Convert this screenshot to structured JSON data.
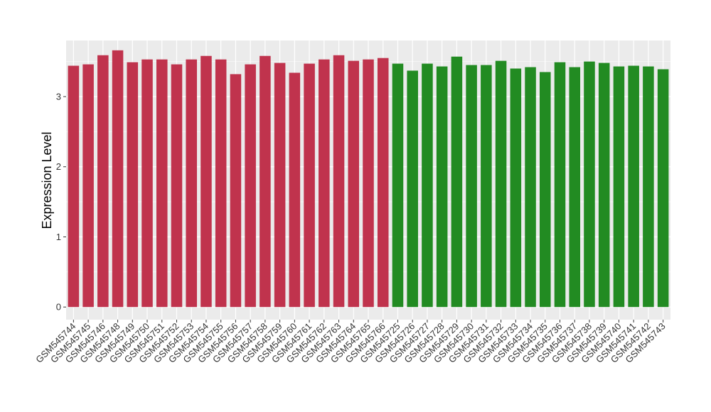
{
  "chart_data": {
    "type": "bar",
    "title": "",
    "xlabel": "",
    "ylabel": "Expression Level",
    "ylim": [
      -0.18,
      3.8
    ],
    "yticks": [
      0,
      1,
      2,
      3
    ],
    "grid": true,
    "legend": "none",
    "categories": [
      "GSM545744",
      "GSM545745",
      "GSM545746",
      "GSM545748",
      "GSM545749",
      "GSM545750",
      "GSM545751",
      "GSM545752",
      "GSM545753",
      "GSM545754",
      "GSM545755",
      "GSM545756",
      "GSM545757",
      "GSM545758",
      "GSM545759",
      "GSM545760",
      "GSM545761",
      "GSM545762",
      "GSM545763",
      "GSM545764",
      "GSM545765",
      "GSM545766",
      "GSM545725",
      "GSM545726",
      "GSM545727",
      "GSM545728",
      "GSM545729",
      "GSM545730",
      "GSM545731",
      "GSM545732",
      "GSM545733",
      "GSM545734",
      "GSM545735",
      "GSM545736",
      "GSM545737",
      "GSM545738",
      "GSM545739",
      "GSM545740",
      "GSM545741",
      "GSM545742",
      "GSM545743"
    ],
    "values": [
      3.44,
      3.46,
      3.59,
      3.66,
      3.49,
      3.53,
      3.53,
      3.46,
      3.53,
      3.58,
      3.53,
      3.32,
      3.46,
      3.58,
      3.48,
      3.34,
      3.47,
      3.53,
      3.59,
      3.51,
      3.53,
      3.55,
      3.47,
      3.37,
      3.47,
      3.43,
      3.57,
      3.45,
      3.45,
      3.51,
      3.4,
      3.42,
      3.35,
      3.49,
      3.42,
      3.5,
      3.48,
      3.43,
      3.44,
      3.43,
      3.39
    ],
    "groups": [
      0,
      0,
      0,
      0,
      0,
      0,
      0,
      0,
      0,
      0,
      0,
      0,
      0,
      0,
      0,
      0,
      0,
      0,
      0,
      0,
      0,
      0,
      1,
      1,
      1,
      1,
      1,
      1,
      1,
      1,
      1,
      1,
      1,
      1,
      1,
      1,
      1,
      1,
      1,
      1,
      1
    ],
    "colors": [
      "#c0334d",
      "#228b22"
    ],
    "panel_color": "#ebebeb",
    "grid_color": "#ffffff"
  }
}
